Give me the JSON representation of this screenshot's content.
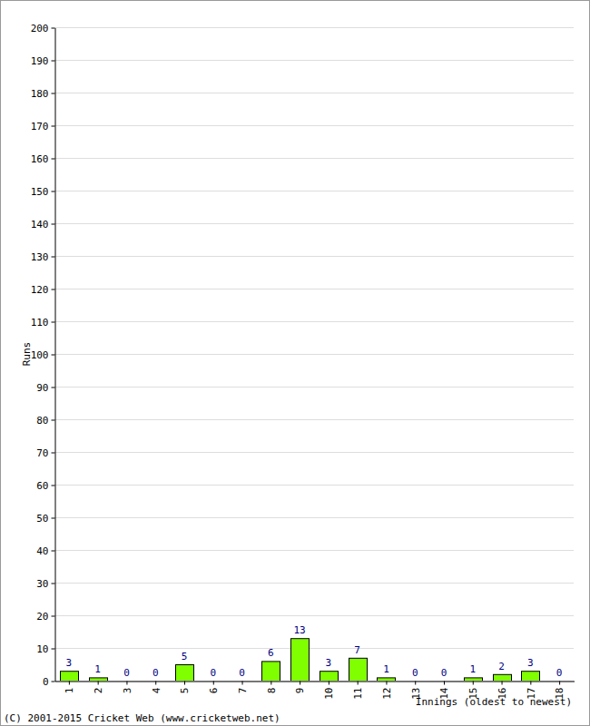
{
  "chart_data": {
    "type": "bar",
    "y_label": "Runs",
    "x_label": "Innings (oldest to newest)",
    "annotations": [
      "(C) 2001-2015 Cricket Web (www.cricketweb.net)"
    ],
    "categories": [
      "1",
      "2",
      "3",
      "4",
      "5",
      "6",
      "7",
      "8",
      "9",
      "10",
      "11",
      "12",
      "13",
      "14",
      "15",
      "16",
      "17",
      "18"
    ],
    "values": [
      3,
      1,
      0,
      0,
      5,
      0,
      0,
      6,
      13,
      3,
      7,
      1,
      0,
      0,
      1,
      2,
      3,
      0
    ],
    "color": "#80ff00",
    "ylim": [
      0,
      200
    ],
    "yticks": [
      0,
      10,
      20,
      30,
      40,
      50,
      60,
      70,
      80,
      90,
      100,
      110,
      120,
      130,
      140,
      150,
      160,
      170,
      180,
      190,
      200
    ],
    "grid": true,
    "data_labels": true
  }
}
